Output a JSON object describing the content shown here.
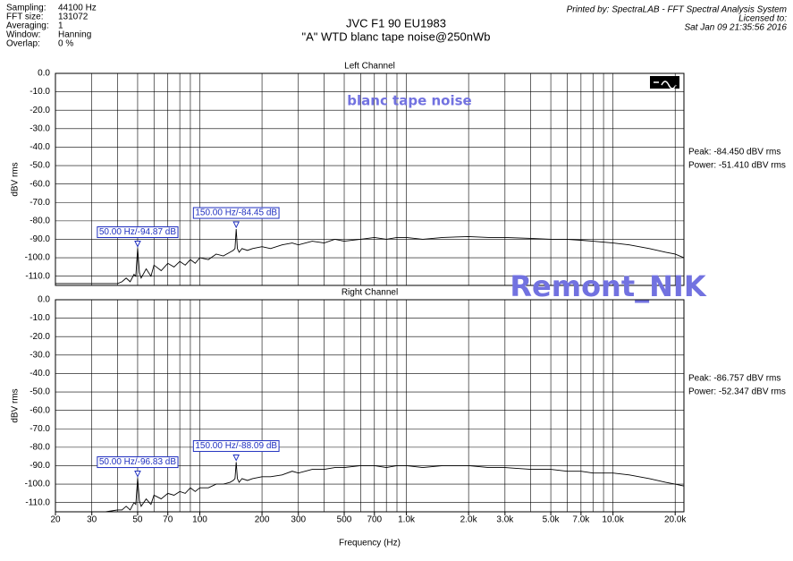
{
  "header": {
    "info": [
      [
        "Sampling:",
        "44100 Hz"
      ],
      [
        "FFT size:",
        "131072"
      ],
      [
        "Averaging:",
        "1"
      ],
      [
        "Window:",
        "Hanning"
      ],
      [
        "Overlap:",
        "0 %"
      ]
    ],
    "title": "JVC F1 90 EU1983",
    "subtitle": "\"A\" WTD blanc tape noise@250nWb",
    "printed_by": "Printed by: SpectraLAB - FFT Spectral Analysis System",
    "licensed": "Licensed to:",
    "date": "Sat Jan 09 21:35:56 2016",
    "watermark_small": "blanc tape noise",
    "watermark_large": "Remont_NIK"
  },
  "chart_data": [
    {
      "type": "line",
      "title": "Left Channel",
      "ylabel": "dBV rms",
      "xscale": "log",
      "grid": true,
      "xlim": [
        20,
        22050
      ],
      "ylim": [
        -115,
        0
      ],
      "yticks": [
        {
          "value": 0,
          "label": "0.0"
        },
        {
          "value": -10,
          "label": "-10.0"
        },
        {
          "value": -20,
          "label": "-20.0"
        },
        {
          "value": -30,
          "label": "-30.0"
        },
        {
          "value": -40,
          "label": "-40.0"
        },
        {
          "value": -50,
          "label": "-50.0"
        },
        {
          "value": -60,
          "label": "-60.0"
        },
        {
          "value": -70,
          "label": "-70.0"
        },
        {
          "value": -80,
          "label": "-80.0"
        },
        {
          "value": -90,
          "label": "-90.0"
        },
        {
          "value": -100,
          "label": "-100.0"
        },
        {
          "value": -110,
          "label": "-110.0"
        }
      ],
      "xgrid": [
        20,
        30,
        40,
        50,
        60,
        70,
        80,
        90,
        100,
        200,
        300,
        400,
        500,
        600,
        700,
        800,
        900,
        1000,
        2000,
        3000,
        4000,
        5000,
        6000,
        7000,
        8000,
        9000,
        10000,
        20000
      ],
      "x": [
        20,
        25,
        30,
        35,
        40,
        42,
        44,
        46,
        48,
        49,
        50,
        51,
        52,
        55,
        58,
        60,
        65,
        70,
        75,
        80,
        85,
        90,
        95,
        100,
        110,
        120,
        130,
        140,
        145,
        148,
        150,
        152,
        155,
        160,
        170,
        180,
        200,
        220,
        250,
        280,
        300,
        350,
        400,
        450,
        500,
        600,
        700,
        800,
        900,
        1000,
        1200,
        1500,
        2000,
        2500,
        3000,
        4000,
        5000,
        6000,
        7000,
        8000,
        10000,
        12000,
        15000,
        18000,
        20000,
        22050
      ],
      "series": [
        {
          "color": "#000000",
          "values": [
            -114,
            -114,
            -114,
            -114,
            -114,
            -113,
            -111,
            -113,
            -109,
            -110,
            -94.87,
            -108,
            -111,
            -106,
            -110,
            -104,
            -107,
            -103,
            -105,
            -102,
            -104,
            -101,
            -103,
            -100,
            -101,
            -98,
            -99,
            -97,
            -96,
            -95,
            -84.45,
            -95,
            -97,
            -95,
            -96,
            -95,
            -94,
            -95,
            -93,
            -92,
            -93,
            -91,
            -92,
            -90,
            -91,
            -90,
            -89,
            -90,
            -89,
            -89,
            -90,
            -89,
            -88.5,
            -89,
            -89,
            -89.5,
            -90,
            -90,
            -90.5,
            -91,
            -92,
            -93,
            -95,
            -97,
            -98,
            -100
          ]
        }
      ],
      "annotations": [
        {
          "label": "50.00 Hz/-94.87 dB",
          "x": 50,
          "y": -94.87
        },
        {
          "label": "150.00 Hz/-84.45 dB",
          "x": 150,
          "y": -84.45
        }
      ],
      "side_notes": [
        "Peak: -84.450 dBV rms",
        "Power: -51.410 dBV rms"
      ]
    },
    {
      "type": "line",
      "title": "Right Channel",
      "ylabel": "dBV rms",
      "xlabel": "Frequency (Hz)",
      "xscale": "log",
      "grid": true,
      "xlim": [
        20,
        22050
      ],
      "ylim": [
        -115,
        0
      ],
      "yticks": [
        {
          "value": 0,
          "label": "0.0"
        },
        {
          "value": -10,
          "label": "-10.0"
        },
        {
          "value": -20,
          "label": "-20.0"
        },
        {
          "value": -30,
          "label": "-30.0"
        },
        {
          "value": -40,
          "label": "-40.0"
        },
        {
          "value": -50,
          "label": "-50.0"
        },
        {
          "value": -60,
          "label": "-60.0"
        },
        {
          "value": -70,
          "label": "-70.0"
        },
        {
          "value": -80,
          "label": "-80.0"
        },
        {
          "value": -90,
          "label": "-90.0"
        },
        {
          "value": -100,
          "label": "-100.0"
        },
        {
          "value": -110,
          "label": "-110.0"
        }
      ],
      "xgrid": [
        20,
        30,
        40,
        50,
        60,
        70,
        80,
        90,
        100,
        200,
        300,
        400,
        500,
        600,
        700,
        800,
        900,
        1000,
        2000,
        3000,
        4000,
        5000,
        6000,
        7000,
        8000,
        9000,
        10000,
        20000
      ],
      "xticks": [
        20,
        30,
        50,
        70,
        100,
        200,
        300,
        500,
        700,
        {
          "value": 1000,
          "label": "1.0k"
        },
        {
          "value": 2000,
          "label": "2.0k"
        },
        {
          "value": 3000,
          "label": "3.0k"
        },
        {
          "value": 5000,
          "label": "5.0k"
        },
        {
          "value": 7000,
          "label": "7.0k"
        },
        {
          "value": 10000,
          "label": "10.0k"
        },
        {
          "value": 20000,
          "label": "20.0k"
        }
      ],
      "x": [
        20,
        25,
        30,
        35,
        40,
        42,
        44,
        46,
        48,
        49,
        50,
        51,
        52,
        55,
        58,
        60,
        65,
        70,
        75,
        80,
        85,
        90,
        95,
        100,
        110,
        120,
        130,
        140,
        145,
        148,
        150,
        152,
        155,
        160,
        170,
        180,
        200,
        220,
        250,
        280,
        300,
        350,
        400,
        450,
        500,
        600,
        700,
        800,
        900,
        1000,
        1200,
        1500,
        2000,
        2500,
        3000,
        4000,
        5000,
        6000,
        7000,
        8000,
        10000,
        12000,
        15000,
        18000,
        20000,
        22050
      ],
      "series": [
        {
          "color": "#000000",
          "values": [
            -115,
            -115,
            -115,
            -115,
            -114,
            -114,
            -112,
            -114,
            -110,
            -111,
            -96.83,
            -109,
            -112,
            -108,
            -111,
            -106,
            -108,
            -105,
            -106,
            -104,
            -105,
            -102,
            -104,
            -102,
            -102,
            -100,
            -100,
            -99,
            -98,
            -97,
            -88.09,
            -97,
            -99,
            -97,
            -98,
            -97,
            -96,
            -96,
            -95,
            -93,
            -94,
            -92,
            -92,
            -91,
            -91,
            -90,
            -90,
            -91,
            -90,
            -90,
            -91,
            -90,
            -90,
            -91,
            -91,
            -92,
            -92,
            -93,
            -93,
            -94,
            -94,
            -95,
            -97,
            -99,
            -100,
            -101
          ]
        }
      ],
      "annotations": [
        {
          "label": "50.00 Hz/-96.83 dB",
          "x": 50,
          "y": -96.83
        },
        {
          "label": "150.00 Hz/-88.09 dB",
          "x": 150,
          "y": -88.09
        }
      ],
      "side_notes": [
        "Peak: -86.757 dBV rms",
        "Power: -52.347 dBV rms"
      ]
    }
  ]
}
